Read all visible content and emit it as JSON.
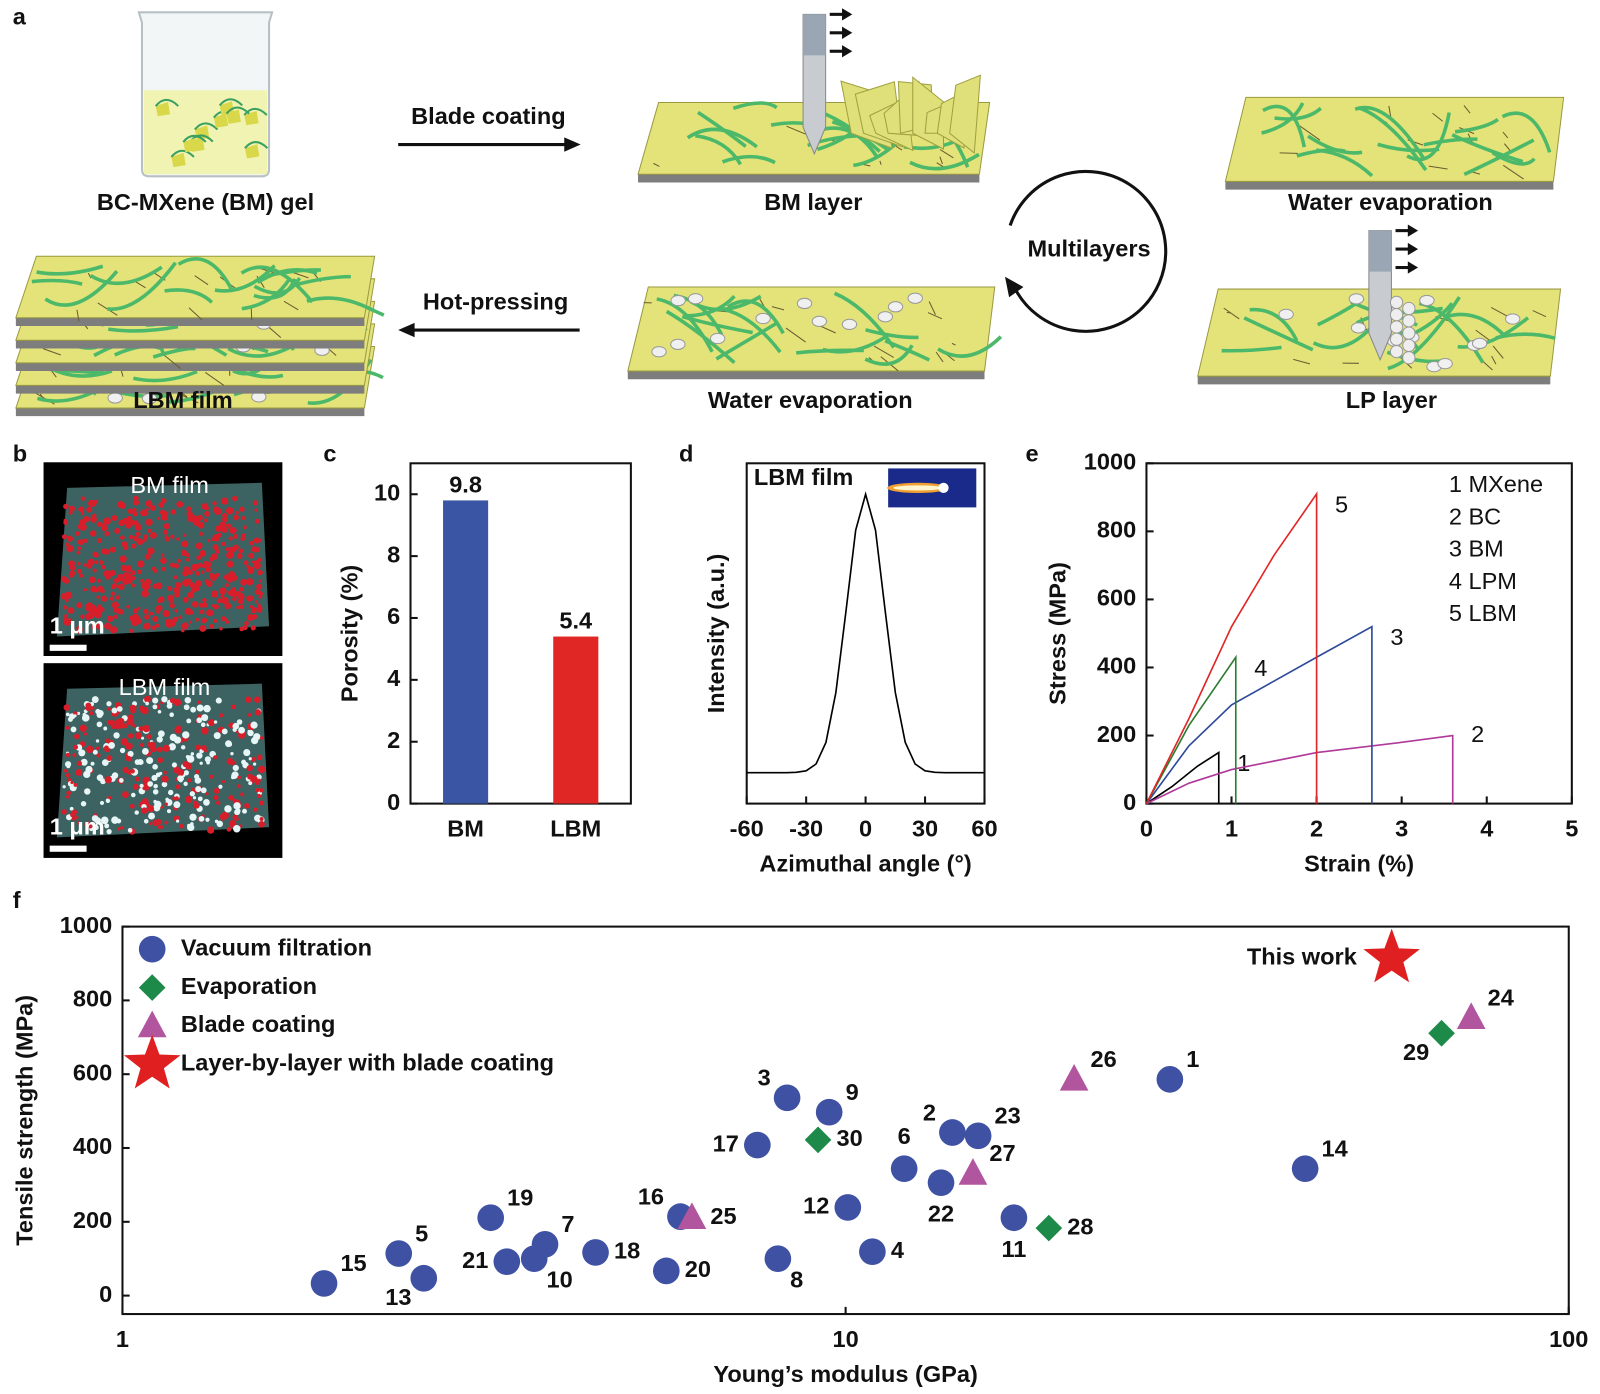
{
  "panel_a": {
    "label": "a",
    "gel": "BC-MXene (BM) gel",
    "blade_coating": "Blade coating",
    "bm_layer": "BM layer",
    "water_evaporation_top": "Water evaporation",
    "multilayers": "Multilayers",
    "lp_layer": "LP layer",
    "water_evaporation_bottom": "Water evaporation",
    "hot_pressing": "Hot-pressing",
    "lbm_film": "LBM film"
  },
  "panel_b": {
    "label": "b",
    "images": [
      {
        "title": "BM film",
        "scale_bar": "1 μm"
      },
      {
        "title": "LBM film",
        "scale_bar": "1 μm"
      }
    ]
  },
  "chart_data": [
    {
      "type": "bar",
      "panel": "c",
      "categories": [
        "BM",
        "LBM"
      ],
      "values": [
        9.8,
        5.4
      ],
      "colors": [
        "#3a55a4",
        "#e02726"
      ],
      "ylabel": "Porosity (%)",
      "ylim": [
        0,
        11
      ],
      "yticks": [
        0,
        2,
        4,
        6,
        8,
        10
      ]
    },
    {
      "type": "line",
      "panel": "d",
      "annotation": "LBM film",
      "color": "#000000",
      "x": [
        -60,
        -55,
        -50,
        -45,
        -40,
        -35,
        -30,
        -25,
        -20,
        -15,
        -10,
        -5,
        0,
        5,
        10,
        15,
        20,
        25,
        30,
        35,
        40,
        45,
        50,
        55,
        60
      ],
      "values": [
        0.1,
        0.1,
        0.1,
        0.1,
        0.1,
        0.101,
        0.106,
        0.128,
        0.198,
        0.359,
        0.617,
        0.884,
        1.0,
        0.884,
        0.617,
        0.359,
        0.198,
        0.128,
        0.106,
        0.101,
        0.1,
        0.1,
        0.1,
        0.1,
        0.1
      ],
      "xlabel": "Azimuthal angle (°)",
      "ylabel": "Intensity (a.u.)",
      "xlim": [
        -60,
        60
      ],
      "xticks": [
        -60,
        -30,
        0,
        30,
        60
      ],
      "ylim": [
        0,
        1.1
      ]
    },
    {
      "type": "line",
      "panel": "e",
      "xlabel": "Strain (%)",
      "ylabel": "Stress (MPa)",
      "xlim": [
        0,
        5
      ],
      "xticks": [
        0,
        1,
        2,
        3,
        4,
        5
      ],
      "ylim": [
        0,
        1000
      ],
      "yticks": [
        0,
        200,
        400,
        600,
        800,
        1000
      ],
      "series": [
        {
          "name": "1 MXene",
          "label": "1",
          "color": "#000000",
          "x": [
            0,
            0.3,
            0.6,
            0.85,
            0.85
          ],
          "values": [
            0,
            50,
            110,
            150,
            0
          ]
        },
        {
          "name": "2 BC",
          "label": "2",
          "color": "#b0399a",
          "x": [
            0,
            0.5,
            1,
            2,
            3,
            3.6,
            3.6
          ],
          "values": [
            0,
            60,
            100,
            150,
            180,
            200,
            0
          ]
        },
        {
          "name": "3 BM",
          "label": "3",
          "color": "#2e4a9a",
          "x": [
            0,
            0.5,
            1,
            1.5,
            2,
            2.65,
            2.65
          ],
          "values": [
            0,
            170,
            290,
            360,
            430,
            520,
            0
          ]
        },
        {
          "name": "4 LPM",
          "label": "4",
          "color": "#2f7d32",
          "x": [
            0,
            0.5,
            1.05,
            1.05
          ],
          "values": [
            0,
            230,
            430,
            0
          ]
        },
        {
          "name": "5 LBM",
          "label": "5",
          "color": "#e02726",
          "x": [
            0,
            0.5,
            1,
            1.5,
            2,
            2
          ],
          "values": [
            0,
            250,
            520,
            730,
            910,
            0
          ]
        }
      ]
    },
    {
      "type": "scatter",
      "panel": "f",
      "xlabel": "Young’s modulus (GPa)",
      "ylabel": "Tensile strength (MPa)",
      "xscale": "log",
      "xlim": [
        1,
        100
      ],
      "xticks": [
        1,
        10,
        100
      ],
      "ylim": [
        -50,
        1000
      ],
      "yticks": [
        0,
        200,
        400,
        600,
        800,
        1000
      ],
      "series": [
        {
          "name": "Vacuum filtration",
          "marker": "circle",
          "color": "#3f51a3",
          "labels": [
            "15",
            "5",
            "13",
            "19",
            "21",
            "10",
            "7",
            "18",
            "20",
            "16",
            "17",
            "3",
            "8",
            "9",
            "12",
            "4",
            "6",
            "22",
            "2",
            "23",
            "11",
            "1",
            "14"
          ],
          "x": [
            1.9,
            2.41,
            2.61,
            3.23,
            3.4,
            3.71,
            3.84,
            4.51,
            5.65,
            5.91,
            7.55,
            8.3,
            8.06,
            9.49,
            10.07,
            10.89,
            12.05,
            13.55,
            14.05,
            15.25,
            17.09,
            28.08,
            43.2
          ],
          "values": [
            33,
            114,
            47,
            211,
            92,
            100,
            139,
            117,
            67,
            214,
            408,
            536,
            100,
            497,
            239,
            119,
            344,
            306,
            442,
            433,
            211,
            586,
            344
          ]
        },
        {
          "name": "Evaporation",
          "marker": "diamond",
          "color": "#1e8a4a",
          "labels": [
            "30",
            "28",
            "29"
          ],
          "x": [
            9.16,
            19.1,
            66.7
          ],
          "values": [
            422,
            183,
            711
          ]
        },
        {
          "name": "Blade coating",
          "marker": "triangle",
          "color": "#b0559e",
          "labels": [
            "25",
            "27",
            "26",
            "24"
          ],
          "x": [
            6.13,
            15.0,
            20.7,
            73.3
          ],
          "values": [
            211,
            331,
            586,
            753
          ]
        },
        {
          "name": "Layer-by-layer with blade coating",
          "marker": "star",
          "color": "#e02020",
          "labels": [
            "This work"
          ],
          "x": [
            56.9
          ],
          "values": [
            914
          ]
        }
      ]
    }
  ]
}
